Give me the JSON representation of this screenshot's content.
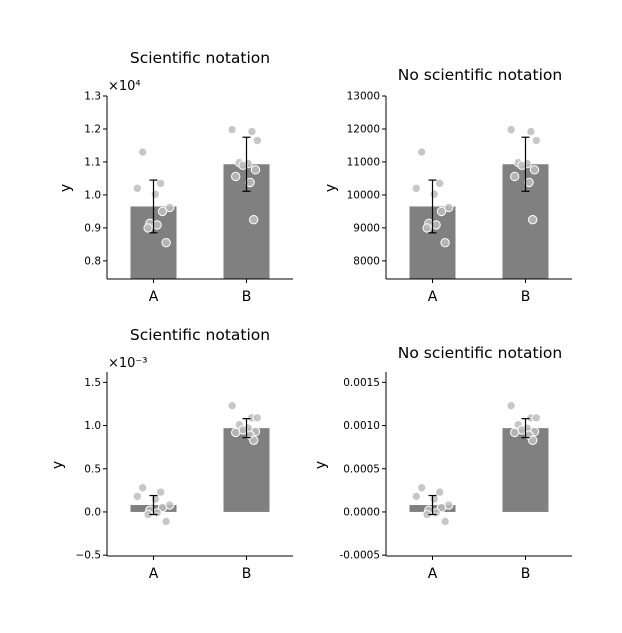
{
  "chart_data": [
    {
      "type": "bar",
      "title": "Scientific notation",
      "ylabel": "y",
      "categories": [
        "A",
        "B"
      ],
      "values": [
        9650,
        10930
      ],
      "error": [
        800,
        820
      ],
      "points": [
        [
          11300,
          10350,
          10200,
          10020,
          9620,
          9500,
          9140,
          9090,
          9000,
          8550
        ],
        [
          11980,
          11920,
          11650,
          10980,
          10950,
          10900,
          10760,
          10560,
          10380,
          9250
        ]
      ],
      "ylim": [
        7450,
        13000
      ],
      "yticks": [
        8000,
        9000,
        10000,
        11000,
        12000,
        13000
      ],
      "ytick_labels": [
        "0.8",
        "0.9",
        "1.0",
        "1.1",
        "1.2",
        "1.3"
      ],
      "offset_text": "×10⁴"
    },
    {
      "type": "bar",
      "title": "No scientific notation",
      "ylabel": "y",
      "categories": [
        "A",
        "B"
      ],
      "values": [
        9650,
        10930
      ],
      "error": [
        800,
        820
      ],
      "points": [
        [
          11300,
          10350,
          10200,
          10020,
          9620,
          9500,
          9140,
          9090,
          9000,
          8550
        ],
        [
          11980,
          11920,
          11650,
          10980,
          10950,
          10900,
          10760,
          10560,
          10380,
          9250
        ]
      ],
      "ylim": [
        7450,
        13000
      ],
      "yticks": [
        8000,
        9000,
        10000,
        11000,
        12000,
        13000
      ],
      "ytick_labels": [
        "8000",
        "9000",
        "10000",
        "11000",
        "12000",
        "13000"
      ],
      "offset_text": ""
    },
    {
      "type": "bar",
      "title": "Scientific notation",
      "ylabel": "y",
      "categories": [
        "A",
        "B"
      ],
      "values": [
        8e-05,
        0.00097
      ],
      "error": [
        0.00011,
        0.00011
      ],
      "points": [
        [
          0.00028,
          0.00023,
          0.00018,
          0.00015,
          8e-05,
          5e-05,
          2e-05,
          -1e-05,
          -3e-05,
          -0.00011
        ],
        [
          0.00123,
          0.00109,
          0.00109,
          0.00101,
          0.00097,
          0.00095,
          0.00093,
          0.00092,
          0.00089,
          0.00083
        ]
      ],
      "ylim": [
        -0.00051,
        0.00162
      ],
      "yticks": [
        -0.0005,
        0.0,
        0.0005,
        0.001,
        0.0015
      ],
      "ytick_labels": [
        "−0.5",
        "0.0",
        "0.5",
        "1.0",
        "1.5"
      ],
      "offset_text": "×10⁻³"
    },
    {
      "type": "bar",
      "title": "No scientific notation",
      "ylabel": "y",
      "categories": [
        "A",
        "B"
      ],
      "values": [
        8e-05,
        0.00097
      ],
      "error": [
        0.00011,
        0.00011
      ],
      "points": [
        [
          0.00028,
          0.00023,
          0.00018,
          0.00015,
          8e-05,
          5e-05,
          2e-05,
          -1e-05,
          -3e-05,
          -0.00011
        ],
        [
          0.00123,
          0.00109,
          0.00109,
          0.00101,
          0.00097,
          0.00095,
          0.00093,
          0.00092,
          0.00089,
          0.00083
        ]
      ],
      "ylim": [
        -0.00051,
        0.00162
      ],
      "yticks": [
        -0.0005,
        0.0,
        0.0005,
        0.001,
        0.0015
      ],
      "ytick_labels": [
        "-0.0005",
        "0.0000",
        "0.0005",
        "0.0010",
        "0.0015"
      ],
      "offset_text": ""
    }
  ],
  "colors": {
    "bar": "#808080",
    "point_fill": "#bdbdbd",
    "point_edge": "#ffffff",
    "errorbar": "#000000"
  }
}
